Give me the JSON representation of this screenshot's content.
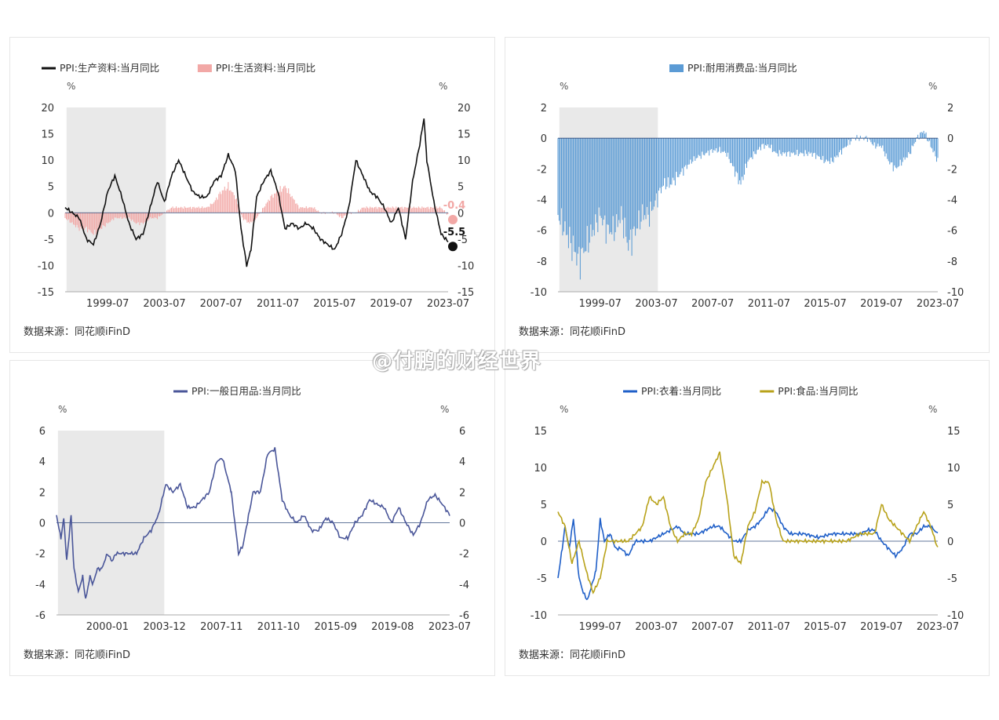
{
  "watermark": "@付鹏的财经世界",
  "colors": {
    "black": "#111111",
    "pink": "#f2a8a6",
    "blue": "#5b9bd5",
    "navy": "#4a5699",
    "clothing": "#1f5fc8",
    "food": "#b8a21a",
    "shade": "#e9e9e9",
    "axis": "#333333",
    "zero": "#1f3864"
  },
  "chart_data": [
    {
      "type": "line",
      "id": "c0",
      "source": "数据来源：同花顺iFinD",
      "unit_left": "%",
      "unit_right": "%",
      "ylim": [
        -15,
        20
      ],
      "yticks": [
        -15,
        -10,
        -5,
        0,
        5,
        10,
        15,
        20
      ],
      "xlim": [
        1996.5,
        2023.5
      ],
      "xtick_labels": [
        "1999-07",
        "2003-07",
        "2007-07",
        "2011-07",
        "2015-07",
        "2019-07",
        "2023-07"
      ],
      "xticks": [
        1999.5,
        2003.5,
        2007.5,
        2011.5,
        2015.5,
        2019.5,
        2023.5
      ],
      "shade": [
        1996.6,
        2003.6
      ],
      "zero_line": true,
      "series": [
        {
          "name": "PPI:生产资料:当月同比",
          "kind": "line",
          "color": "#111111",
          "x": [
            1996.5,
            1997.0,
            1997.5,
            1998.0,
            1998.5,
            1999.0,
            1999.5,
            2000.0,
            2000.5,
            2001.0,
            2001.5,
            2002.0,
            2002.5,
            2003.0,
            2003.5,
            2004.0,
            2004.5,
            2005.0,
            2005.5,
            2006.0,
            2006.5,
            2007.0,
            2007.5,
            2008.0,
            2008.5,
            2008.9,
            2009.3,
            2009.6,
            2010.0,
            2010.5,
            2011.0,
            2011.5,
            2012.0,
            2012.5,
            2013.0,
            2013.5,
            2014.0,
            2014.5,
            2015.0,
            2015.5,
            2016.0,
            2016.5,
            2017.0,
            2017.5,
            2018.0,
            2018.5,
            2019.0,
            2019.5,
            2020.0,
            2020.5,
            2021.0,
            2021.5,
            2021.8,
            2022.0,
            2022.5,
            2023.0,
            2023.5
          ],
          "y": [
            1,
            0,
            -1,
            -5,
            -6,
            -2,
            4,
            7,
            3,
            -2,
            -5,
            -4,
            1,
            6,
            2,
            7,
            10,
            7,
            4,
            3,
            3,
            6,
            7,
            11,
            8,
            -3,
            -10,
            -7,
            3,
            6,
            8,
            4,
            -3,
            -2,
            -3,
            -2,
            -3,
            -5,
            -6,
            -7,
            -4,
            1,
            10,
            7,
            4,
            3,
            1,
            -2,
            1,
            -5,
            6,
            13,
            18,
            10,
            2,
            -4,
            -5.5
          ]
        },
        {
          "name": "PPI:生活资料:当月同比",
          "kind": "bar",
          "color": "#f2a8a6",
          "x": [
            1996.5,
            1997.0,
            1997.5,
            1998.0,
            1998.5,
            1999.0,
            1999.5,
            2000.0,
            2000.5,
            2001.0,
            2001.5,
            2002.0,
            2002.5,
            2003.0,
            2003.5,
            2004.0,
            2004.5,
            2005.0,
            2005.5,
            2006.0,
            2006.5,
            2007.0,
            2007.5,
            2008.0,
            2008.5,
            2009.0,
            2009.5,
            2010.0,
            2010.5,
            2011.0,
            2011.5,
            2012.0,
            2012.5,
            2013.0,
            2013.5,
            2014.0,
            2014.5,
            2015.0,
            2015.5,
            2016.0,
            2016.5,
            2017.0,
            2017.5,
            2018.0,
            2018.5,
            2019.0,
            2019.5,
            2020.0,
            2020.5,
            2021.0,
            2021.5,
            2022.0,
            2022.5,
            2023.0,
            2023.5
          ],
          "y": [
            -1,
            -2,
            -3,
            -3,
            -4,
            -3,
            -2,
            -1,
            -1,
            -1,
            -2,
            -2,
            -1,
            -1,
            0,
            1,
            1,
            1,
            1,
            1,
            1,
            2,
            4,
            5,
            3,
            -1,
            -2,
            -1,
            1,
            3,
            4,
            5,
            3,
            1,
            1,
            1,
            0,
            0,
            0,
            -1,
            0,
            0,
            1,
            1,
            1,
            1,
            1,
            1,
            1,
            1,
            1,
            1,
            1,
            1,
            -0.4
          ]
        }
      ],
      "labels": [
        {
          "text": "-5.5",
          "x": 2023.5,
          "y": -5.5,
          "color": "#111111"
        },
        {
          "text": "-0.4",
          "x": 2023.5,
          "y": -0.4,
          "color": "#f2a8a6"
        }
      ]
    },
    {
      "type": "bar",
      "id": "c1",
      "source": "数据来源：同花顺iFinD",
      "unit_left": "%",
      "unit_right": "%",
      "ylim": [
        -10,
        2
      ],
      "yticks": [
        -10,
        -8,
        -6,
        -4,
        -2,
        0,
        2
      ],
      "xlim": [
        1996.5,
        2023.5
      ],
      "xtick_labels": [
        "1999-07",
        "2003-07",
        "2007-07",
        "2011-07",
        "2015-07",
        "2019-07",
        "2023-07"
      ],
      "xticks": [
        1999.5,
        2003.5,
        2007.5,
        2011.5,
        2015.5,
        2019.5,
        2023.5
      ],
      "shade": [
        1996.6,
        2003.6
      ],
      "series": [
        {
          "name": "PPI:耐用消费品:当月同比",
          "kind": "bar",
          "color": "#5b9bd5",
          "x": [
            1996.5,
            1997.0,
            1997.5,
            1998.0,
            1998.5,
            1999.0,
            1999.5,
            2000.0,
            2000.5,
            2001.0,
            2001.5,
            2002.0,
            2002.5,
            2003.0,
            2003.5,
            2004.0,
            2004.5,
            2005.0,
            2005.5,
            2006.0,
            2006.5,
            2007.0,
            2007.5,
            2008.0,
            2008.5,
            2009.0,
            2009.5,
            2010.0,
            2010.5,
            2011.0,
            2011.5,
            2012.0,
            2012.5,
            2013.0,
            2013.5,
            2014.0,
            2014.5,
            2015.0,
            2015.5,
            2016.0,
            2016.5,
            2017.0,
            2017.5,
            2018.0,
            2018.5,
            2019.0,
            2019.5,
            2020.0,
            2020.5,
            2021.0,
            2021.5,
            2022.0,
            2022.5,
            2023.0,
            2023.5
          ],
          "y": [
            -5,
            -6,
            -7,
            -8,
            -7,
            -6,
            -5,
            -6,
            -6,
            -5,
            -7,
            -6,
            -5,
            -5,
            -4,
            -3,
            -3,
            -2.5,
            -2,
            -1.5,
            -1.2,
            -1,
            -0.8,
            -0.8,
            -1,
            -2,
            -3,
            -1.5,
            -1,
            -0.5,
            -0.5,
            -1,
            -1,
            -1,
            -1,
            -1,
            -1,
            -1.2,
            -1.5,
            -1.5,
            -1,
            -0.5,
            0,
            0,
            0,
            -0.5,
            -0.5,
            -1.5,
            -2,
            -1.5,
            -1,
            0,
            0.5,
            -0.5,
            -1.5
          ]
        }
      ]
    },
    {
      "type": "line",
      "id": "c2",
      "source": "数据来源：同花顺iFinD",
      "unit_left": "%",
      "unit_right": "%",
      "ylim": [
        -6,
        6
      ],
      "yticks": [
        -6,
        -4,
        -2,
        0,
        2,
        4,
        6
      ],
      "xlim": [
        1996.5,
        2023.5
      ],
      "xtick_labels": [
        "2000-01",
        "2003-12",
        "2007-11",
        "2011-10",
        "2015-09",
        "2019-08",
        "2023-07"
      ],
      "xticks": [
        2000.0,
        2003.92,
        2007.83,
        2011.75,
        2015.67,
        2019.58,
        2023.5
      ],
      "shade": [
        1996.6,
        2003.9
      ],
      "zero_line": true,
      "series": [
        {
          "name": "PPI:一般日用品:当月同比",
          "kind": "line",
          "color": "#4a5699",
          "x": [
            1996.5,
            1996.8,
            1997.0,
            1997.2,
            1997.5,
            1997.7,
            1998.0,
            1998.3,
            1998.5,
            1998.8,
            1999.0,
            1999.3,
            1999.6,
            2000.0,
            2000.3,
            2000.6,
            2001.0,
            2001.5,
            2002.0,
            2002.5,
            2003.0,
            2003.5,
            2004.0,
            2004.5,
            2005.0,
            2005.5,
            2006.0,
            2006.5,
            2007.0,
            2007.5,
            2007.9,
            2008.5,
            2009.0,
            2009.3,
            2009.6,
            2010.0,
            2010.5,
            2011.0,
            2011.5,
            2012.0,
            2012.5,
            2013.0,
            2013.5,
            2014.0,
            2014.5,
            2015.0,
            2015.5,
            2016.0,
            2016.5,
            2017.0,
            2017.5,
            2018.0,
            2018.5,
            2019.0,
            2019.5,
            2020.0,
            2020.5,
            2021.0,
            2021.5,
            2022.0,
            2022.5,
            2023.0,
            2023.5
          ],
          "y": [
            0.5,
            -1,
            0.3,
            -2.5,
            0.5,
            -3,
            -4.5,
            -3.5,
            -5,
            -3.5,
            -4,
            -3,
            -3,
            -2,
            -2.5,
            -2,
            -2,
            -2,
            -2,
            -1,
            -0.5,
            0.5,
            2.5,
            2,
            2.5,
            1,
            1,
            1.5,
            2,
            4,
            4.2,
            2,
            -2,
            -1.5,
            0,
            2,
            2,
            4.5,
            4.8,
            1.5,
            0.5,
            0,
            0.5,
            -0.5,
            -0.5,
            0.3,
            0,
            -1,
            -1,
            0,
            0.5,
            1.5,
            1.2,
            1,
            0,
            1,
            0,
            -0.8,
            0,
            1.5,
            1.8,
            1.2,
            0.5
          ]
        }
      ]
    },
    {
      "type": "line",
      "id": "c3",
      "source": "数据来源：同花顺iFinD",
      "unit_left": "%",
      "unit_right": "%",
      "ylim_left": [
        -10,
        15
      ],
      "yticks_left": [
        -10,
        -5,
        0,
        5,
        10,
        15
      ],
      "ylim_right": [
        -10,
        15
      ],
      "yticks_right": [
        -10,
        -5,
        0,
        5,
        10,
        15
      ],
      "xlim": [
        1996.5,
        2023.5
      ],
      "xtick_labels": [
        "1999-07",
        "2003-07",
        "2007-07",
        "2011-07",
        "2015-07",
        "2019-07",
        "2023-07"
      ],
      "xticks": [
        1999.5,
        2003.5,
        2007.5,
        2011.5,
        2015.5,
        2019.5,
        2023.5
      ],
      "zero_line": true,
      "series": [
        {
          "name": "PPI:衣着:当月同比",
          "kind": "line",
          "color": "#1f5fc8",
          "x": [
            1996.5,
            1996.8,
            1997.0,
            1997.3,
            1997.6,
            1998.0,
            1998.3,
            1998.6,
            1998.9,
            1999.2,
            1999.5,
            1999.8,
            2000.2,
            2000.6,
            2001.0,
            2001.5,
            2002.0,
            2002.5,
            2003.0,
            2003.5,
            2004.0,
            2004.5,
            2005.0,
            2005.5,
            2006.0,
            2006.5,
            2007.0,
            2007.5,
            2008.0,
            2008.5,
            2009.0,
            2009.5,
            2010.0,
            2010.5,
            2011.0,
            2011.5,
            2012.0,
            2012.5,
            2013.0,
            2014.0,
            2015.0,
            2016.0,
            2017.0,
            2018.0,
            2018.5,
            2019.0,
            2019.5,
            2020.0,
            2020.5,
            2021.0,
            2021.5,
            2022.0,
            2022.5,
            2023.0,
            2023.5
          ],
          "y": [
            -5,
            -1,
            2,
            -1,
            3,
            -5,
            -7,
            -8,
            -6,
            -4,
            3,
            0,
            1,
            -1,
            -1,
            -2,
            0,
            0,
            0,
            0.5,
            1,
            1.5,
            2,
            1,
            1,
            1,
            1.5,
            2,
            2,
            1,
            0,
            0,
            1.5,
            2,
            3,
            4.5,
            4,
            2,
            1,
            1,
            0.5,
            1,
            1,
            1,
            1.5,
            1.5,
            0,
            -1,
            -2,
            -1,
            1,
            1,
            2,
            2,
            1
          ]
        },
        {
          "name": "PPI:食品:当月同比",
          "kind": "line",
          "color": "#b8a21a",
          "x": [
            1996.5,
            1997.0,
            1997.5,
            1998.0,
            1998.5,
            1999.0,
            1999.5,
            2000.0,
            2000.5,
            2001.0,
            2001.5,
            2002.0,
            2002.5,
            2003.0,
            2003.5,
            2004.0,
            2004.5,
            2005.0,
            2005.5,
            2006.0,
            2006.5,
            2007.0,
            2007.5,
            2008.0,
            2008.5,
            2009.0,
            2009.5,
            2010.0,
            2010.5,
            2011.0,
            2011.5,
            2012.0,
            2012.5,
            2013.0,
            2013.5,
            2014.0,
            2015.0,
            2016.0,
            2017.0,
            2018.0,
            2019.0,
            2019.5,
            2020.0,
            2020.5,
            2021.0,
            2021.5,
            2022.0,
            2022.5,
            2023.0,
            2023.5
          ],
          "y": [
            4,
            2,
            -3,
            0,
            -4,
            -7,
            -5,
            0,
            0,
            0,
            0,
            1,
            2,
            6,
            5,
            6,
            2,
            0,
            1,
            1,
            3,
            8,
            10,
            12,
            6,
            -2,
            -3,
            2,
            4,
            8,
            8,
            3,
            0,
            0,
            0,
            0,
            0,
            0,
            0,
            1,
            1,
            5,
            3,
            2,
            1,
            0,
            2,
            4,
            2,
            -1
          ]
        }
      ]
    }
  ]
}
